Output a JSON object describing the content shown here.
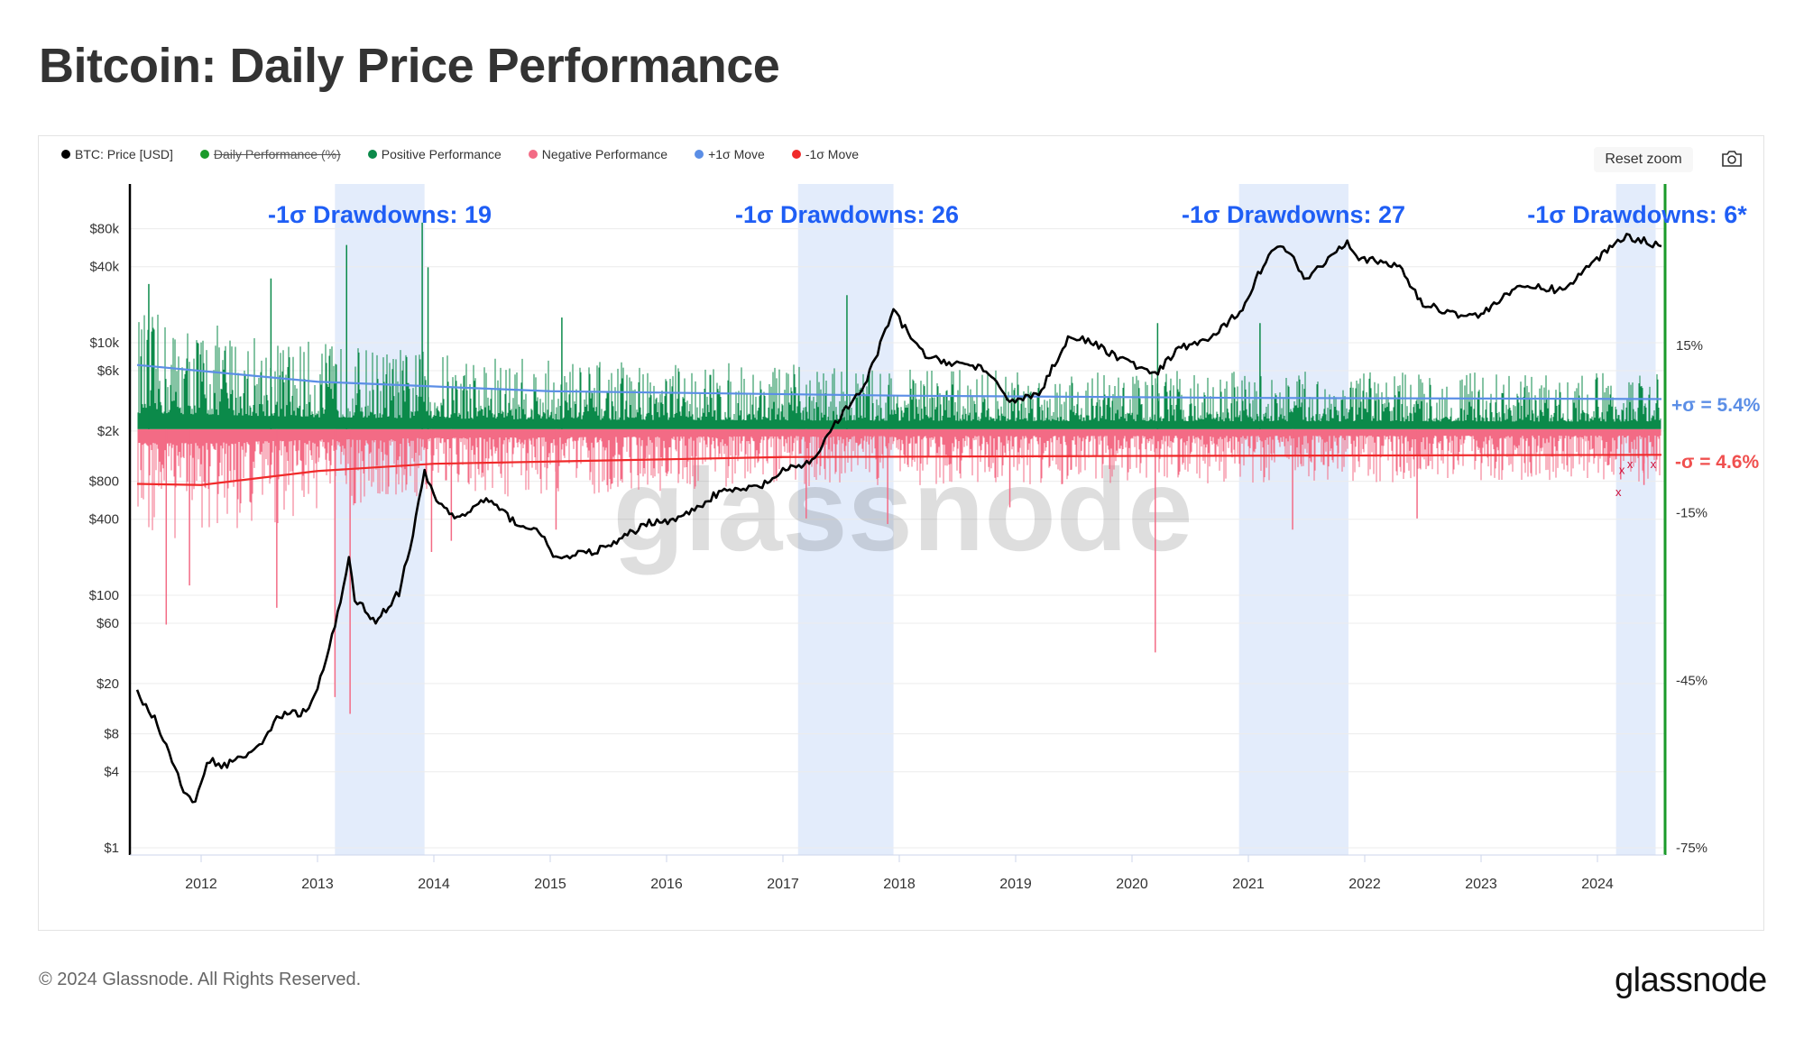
{
  "title": "Bitcoin: Daily Price Performance",
  "legend": [
    {
      "label": "BTC: Price [USD]",
      "color": "#000000",
      "disabled": false
    },
    {
      "label": "Daily Performance (%)",
      "color": "#1a9a2a",
      "disabled": true
    },
    {
      "label": "Positive Performance",
      "color": "#0b8a4a",
      "disabled": false
    },
    {
      "label": "Negative Performance",
      "color": "#f36b85",
      "disabled": false
    },
    {
      "label": "+1σ Move",
      "color": "#5b8ee6",
      "disabled": false
    },
    {
      "label": "-1σ Move",
      "color": "#f02a2a",
      "disabled": false
    }
  ],
  "toolbar": {
    "reset_zoom": "Reset zoom"
  },
  "footer": {
    "copyright": "© 2024 Glassnode. All Rights Reserved.",
    "logo": "glassnode",
    "watermark": "glassnode"
  },
  "chart_data": {
    "type": "line+bar",
    "title": "Bitcoin: Daily Price Performance",
    "x_ticks": [
      "2012",
      "2013",
      "2014",
      "2015",
      "2016",
      "2017",
      "2018",
      "2019",
      "2020",
      "2021",
      "2022",
      "2023",
      "2024"
    ],
    "x_range": [
      2011.45,
      2024.55
    ],
    "left_axis": {
      "scale": "log",
      "ticks": [
        "$80k",
        "$40k",
        "$10k",
        "$6k",
        "$2k",
        "$800",
        "$400",
        "$100",
        "$60",
        "$20",
        "$8",
        "$4",
        "$1"
      ],
      "tick_values": [
        80000,
        40000,
        10000,
        6000,
        2000,
        800,
        400,
        100,
        60,
        20,
        8,
        4,
        1
      ]
    },
    "right_axis": {
      "scale": "linear",
      "ticks": [
        "15%",
        "-15%",
        "-45%",
        "-75%"
      ],
      "tick_values": [
        15,
        -15,
        -45,
        -75
      ],
      "range": [
        -75,
        45
      ]
    },
    "price_series": [
      [
        2011.45,
        17
      ],
      [
        2011.6,
        10.5
      ],
      [
        2011.75,
        5
      ],
      [
        2011.85,
        2.7
      ],
      [
        2011.95,
        2.2
      ],
      [
        2012.05,
        5
      ],
      [
        2012.2,
        4.5
      ],
      [
        2012.5,
        6.2
      ],
      [
        2012.65,
        11
      ],
      [
        2012.9,
        12
      ],
      [
        2013.0,
        17.7
      ],
      [
        2013.15,
        56
      ],
      [
        2013.27,
        190
      ],
      [
        2013.32,
        95
      ],
      [
        2013.5,
        62
      ],
      [
        2013.7,
        105
      ],
      [
        2013.82,
        300
      ],
      [
        2013.92,
        950
      ],
      [
        2014.0,
        600
      ],
      [
        2014.2,
        400
      ],
      [
        2014.45,
        580
      ],
      [
        2014.7,
        380
      ],
      [
        2014.95,
        300
      ],
      [
        2015.05,
        190
      ],
      [
        2015.5,
        240
      ],
      [
        2015.85,
        380
      ],
      [
        2016.1,
        400
      ],
      [
        2016.45,
        650
      ],
      [
        2016.8,
        720
      ],
      [
        2017.0,
        950
      ],
      [
        2017.25,
        1150
      ],
      [
        2017.45,
        2300
      ],
      [
        2017.7,
        4500
      ],
      [
        2017.95,
        18000
      ],
      [
        2018.1,
        11000
      ],
      [
        2018.25,
        7500
      ],
      [
        2018.45,
        7000
      ],
      [
        2018.7,
        6400
      ],
      [
        2018.95,
        3500
      ],
      [
        2019.2,
        3900
      ],
      [
        2019.45,
        11000
      ],
      [
        2019.6,
        10500
      ],
      [
        2019.85,
        8000
      ],
      [
        2020.2,
        5500
      ],
      [
        2020.4,
        9000
      ],
      [
        2020.7,
        11000
      ],
      [
        2020.95,
        19000
      ],
      [
        2021.15,
        46000
      ],
      [
        2021.3,
        60000
      ],
      [
        2021.5,
        32000
      ],
      [
        2021.85,
        65000
      ],
      [
        2021.95,
        47000
      ],
      [
        2022.3,
        40000
      ],
      [
        2022.5,
        20000
      ],
      [
        2022.85,
        16500
      ],
      [
        2023.0,
        16500
      ],
      [
        2023.2,
        24000
      ],
      [
        2023.4,
        28000
      ],
      [
        2023.7,
        26000
      ],
      [
        2023.95,
        42000
      ],
      [
        2024.15,
        62000
      ],
      [
        2024.25,
        70000
      ],
      [
        2024.4,
        64000
      ],
      [
        2024.55,
        58000
      ]
    ],
    "plus_sigma_series": [
      [
        2011.45,
        11.5
      ],
      [
        2013.0,
        8.5
      ],
      [
        2015.0,
        6.8
      ],
      [
        2018.0,
        6.0
      ],
      [
        2021.0,
        5.6
      ],
      [
        2024.55,
        5.4
      ]
    ],
    "minus_sigma_series": [
      [
        2011.45,
        -9.8
      ],
      [
        2012.0,
        -10.0
      ],
      [
        2013.0,
        -7.5
      ],
      [
        2014.0,
        -6.2
      ],
      [
        2017.0,
        -5.0
      ],
      [
        2020.0,
        -4.8
      ],
      [
        2024.55,
        -4.6
      ]
    ],
    "performance_spikes": [
      [
        2011.55,
        26
      ],
      [
        2011.7,
        -35
      ],
      [
        2011.9,
        -28
      ],
      [
        2012.6,
        27
      ],
      [
        2012.65,
        -32
      ],
      [
        2013.15,
        -48
      ],
      [
        2013.25,
        33
      ],
      [
        2013.28,
        -51
      ],
      [
        2013.9,
        37
      ],
      [
        2013.95,
        29
      ],
      [
        2013.98,
        -22
      ],
      [
        2014.15,
        -20
      ],
      [
        2015.05,
        -18
      ],
      [
        2015.1,
        20
      ],
      [
        2017.2,
        -16
      ],
      [
        2017.55,
        24
      ],
      [
        2017.9,
        -17
      ],
      [
        2018.95,
        -14
      ],
      [
        2020.2,
        -40
      ],
      [
        2020.22,
        19
      ],
      [
        2021.1,
        19
      ],
      [
        2021.38,
        -18
      ],
      [
        2022.45,
        -16
      ],
      [
        2024.2,
        -9
      ],
      [
        2024.4,
        -10
      ]
    ],
    "drawdown_periods": [
      [
        2013.15,
        2013.92
      ],
      [
        2017.13,
        2017.95
      ],
      [
        2020.92,
        2021.86
      ],
      [
        2024.16,
        2024.5
      ]
    ],
    "annotations": [
      "-1σ Drawdowns: 19",
      "-1σ Drawdowns: 26",
      "-1σ Drawdowns: 27",
      "-1σ Drawdowns: 6*"
    ],
    "sigma_labels": {
      "plus": "+σ = 5.4%",
      "minus": "-σ = 4.6%"
    },
    "drawdown_markers": [
      [
        2024.18,
        -12
      ],
      [
        2024.21,
        -8
      ],
      [
        2024.28,
        -7
      ],
      [
        2024.48,
        -7
      ]
    ],
    "marker_symbol": "x"
  }
}
